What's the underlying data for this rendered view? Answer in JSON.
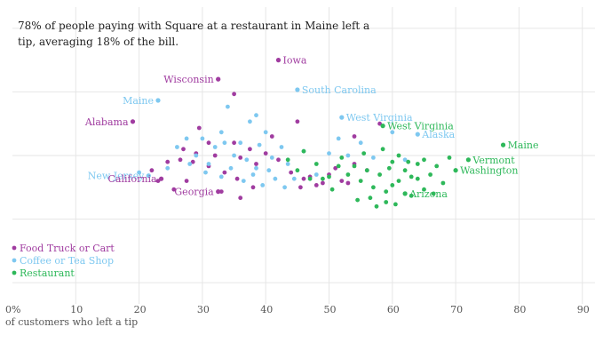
{
  "chart_data": {
    "type": "scatter",
    "annotation_lines": [
      "78% of people paying with Square at a restaurant in Maine left a",
      "tip, averaging 18% of the bill."
    ],
    "xlabel": "of customers who left a tip",
    "xlim": [
      0,
      92
    ],
    "x_ticks": [
      {
        "value": 0,
        "label": "0%"
      },
      {
        "value": 10,
        "label": "10"
      },
      {
        "value": 20,
        "label": "20"
      },
      {
        "value": 30,
        "label": "30"
      },
      {
        "value": 40,
        "label": "40"
      },
      {
        "value": 50,
        "label": "50"
      },
      {
        "value": 60,
        "label": "60"
      },
      {
        "value": 70,
        "label": "70"
      },
      {
        "value": 80,
        "label": "80"
      },
      {
        "value": 90,
        "label": "90"
      }
    ],
    "ylim": [
      11,
      25
    ],
    "y_gridlines": [
      24,
      21,
      18,
      15,
      12
    ],
    "grid": true,
    "legend_position": "bottom-left",
    "colors": {
      "food_truck": "#a03ca0",
      "coffee": "#7ec8f0",
      "restaurant": "#2eb85a",
      "grid": "#e6e6e6",
      "text": "#222222"
    },
    "series": [
      {
        "name": "Food Truck or Cart",
        "color_key": "food_truck",
        "points": [
          [
            42,
            22.5
          ],
          [
            32.5,
            21.6
          ],
          [
            19,
            19.6
          ],
          [
            35,
            20.9
          ],
          [
            45,
            19.6
          ],
          [
            54,
            18.9
          ],
          [
            58,
            19.5
          ],
          [
            29.5,
            19.3
          ],
          [
            22,
            17.3
          ],
          [
            24.5,
            17.7
          ],
          [
            26.5,
            17.8
          ],
          [
            27,
            18.3
          ],
          [
            28.5,
            17.7
          ],
          [
            29,
            18.1
          ],
          [
            31,
            17.5
          ],
          [
            32,
            18.0
          ],
          [
            33.5,
            17.2
          ],
          [
            35,
            18.6
          ],
          [
            36,
            17.9
          ],
          [
            37.5,
            18.3
          ],
          [
            38.5,
            17.6
          ],
          [
            40,
            18.1
          ],
          [
            41,
            18.9
          ],
          [
            42,
            17.8
          ],
          [
            44,
            17.2
          ],
          [
            46,
            16.9
          ],
          [
            48,
            16.6
          ],
          [
            50,
            17.1
          ],
          [
            52,
            16.8
          ],
          [
            54,
            17.6
          ],
          [
            56,
            17.3
          ],
          [
            33,
            16.3
          ],
          [
            36,
            16.0
          ],
          [
            38,
            16.5
          ],
          [
            23,
            16.8
          ],
          [
            25.5,
            16.4
          ],
          [
            47,
            17.0
          ],
          [
            51,
            17.4
          ],
          [
            53,
            16.7
          ],
          [
            31,
            18.6
          ],
          [
            35.5,
            16.9
          ],
          [
            27.5,
            16.8
          ],
          [
            45.5,
            16.5
          ],
          [
            49,
            16.7
          ]
        ]
      },
      {
        "name": "Coffee or Tea Shop",
        "color_key": "coffee",
        "points": [
          [
            23,
            20.6
          ],
          [
            45,
            21.1
          ],
          [
            34,
            20.3
          ],
          [
            38.5,
            19.9
          ],
          [
            40,
            19.1
          ],
          [
            20,
            17.2
          ],
          [
            24.5,
            17.4
          ],
          [
            26,
            18.4
          ],
          [
            29,
            18.0
          ],
          [
            30,
            18.8
          ],
          [
            31,
            17.6
          ],
          [
            32,
            18.4
          ],
          [
            33,
            19.1
          ],
          [
            34.5,
            17.4
          ],
          [
            35,
            18.0
          ],
          [
            36,
            18.6
          ],
          [
            37,
            17.8
          ],
          [
            38,
            17.1
          ],
          [
            39,
            18.5
          ],
          [
            40.5,
            17.3
          ],
          [
            41,
            17.9
          ],
          [
            42.5,
            18.4
          ],
          [
            43.5,
            17.6
          ],
          [
            44.5,
            16.9
          ],
          [
            46,
            18.2
          ],
          [
            48,
            17.1
          ],
          [
            50,
            18.1
          ],
          [
            51.5,
            18.8
          ],
          [
            53,
            18.0
          ],
          [
            55,
            18.6
          ],
          [
            57,
            17.9
          ],
          [
            60,
            19.1
          ],
          [
            62,
            17.8
          ],
          [
            30.5,
            17.2
          ],
          [
            33,
            17.0
          ],
          [
            36.5,
            16.8
          ],
          [
            39.5,
            16.6
          ],
          [
            43,
            16.5
          ],
          [
            28,
            17.6
          ],
          [
            41.5,
            16.9
          ],
          [
            37.5,
            19.6
          ],
          [
            33.5,
            18.6
          ],
          [
            27.5,
            18.8
          ],
          [
            38.5,
            17.4
          ]
        ]
      },
      {
        "name": "Restaurant",
        "color_key": "restaurant",
        "points": [
          [
            77.5,
            18.5
          ],
          [
            72,
            17.8
          ],
          [
            70,
            17.3
          ],
          [
            62,
            16.2
          ],
          [
            46,
            18.2
          ],
          [
            48,
            17.6
          ],
          [
            50,
            17.0
          ],
          [
            52,
            17.9
          ],
          [
            54,
            17.5
          ],
          [
            55,
            16.8
          ],
          [
            56,
            17.3
          ],
          [
            57,
            16.5
          ],
          [
            58,
            17.1
          ],
          [
            59,
            16.3
          ],
          [
            60,
            17.7
          ],
          [
            61,
            16.8
          ],
          [
            62,
            17.3
          ],
          [
            63,
            16.1
          ],
          [
            64,
            17.6
          ],
          [
            65,
            16.4
          ],
          [
            66,
            17.1
          ],
          [
            67,
            17.5
          ],
          [
            68,
            16.7
          ],
          [
            69,
            17.9
          ],
          [
            57.5,
            15.6
          ],
          [
            60.5,
            15.7
          ],
          [
            54.5,
            15.9
          ],
          [
            53,
            17.1
          ],
          [
            58.5,
            18.3
          ],
          [
            61,
            18.0
          ],
          [
            63,
            17.0
          ],
          [
            65,
            17.8
          ],
          [
            50.5,
            16.4
          ],
          [
            55.5,
            18.1
          ],
          [
            59.5,
            17.4
          ],
          [
            64,
            16.9
          ],
          [
            56.5,
            16.0
          ],
          [
            51.5,
            17.5
          ],
          [
            49,
            16.9
          ],
          [
            59,
            15.8
          ],
          [
            47,
            16.9
          ],
          [
            60,
            16.6
          ],
          [
            62.5,
            17.7
          ],
          [
            45,
            17.3
          ],
          [
            43.5,
            17.8
          ],
          [
            66.5,
            16.2
          ]
        ]
      }
    ],
    "labels": [
      {
        "text": "Iowa",
        "series": "food_truck",
        "x": 42,
        "y": 22.5,
        "side": "right"
      },
      {
        "text": "Wisconsin",
        "series": "food_truck",
        "x": 32.5,
        "y": 21.6,
        "side": "left"
      },
      {
        "text": "Maine",
        "series": "coffee",
        "x": 23,
        "y": 20.6,
        "side": "left"
      },
      {
        "text": "South Carolina",
        "series": "coffee",
        "x": 45,
        "y": 21.1,
        "side": "right"
      },
      {
        "text": "Alabama",
        "series": "food_truck",
        "x": 19,
        "y": 19.6,
        "side": "left"
      },
      {
        "text": "West Virginia",
        "series": "coffee",
        "x": 52,
        "y": 19.8,
        "side": "right"
      },
      {
        "text": "West Virginia",
        "series": "restaurant",
        "x": 58.5,
        "y": 19.4,
        "side": "right"
      },
      {
        "text": "Alaska",
        "series": "coffee",
        "x": 64,
        "y": 19.0,
        "side": "right"
      },
      {
        "text": "Maine",
        "series": "restaurant",
        "x": 77.5,
        "y": 18.5,
        "side": "right"
      },
      {
        "text": "Vermont",
        "series": "restaurant",
        "x": 72,
        "y": 17.8,
        "side": "right"
      },
      {
        "text": "Washington",
        "series": "restaurant",
        "x": 70,
        "y": 17.3,
        "side": "right"
      },
      {
        "text": "New Jersey",
        "series": "coffee",
        "x": 21.5,
        "y": 17.05,
        "side": "left"
      },
      {
        "text": "California",
        "series": "food_truck",
        "x": 23.5,
        "y": 16.9,
        "side": "left"
      },
      {
        "text": "Georgia",
        "series": "food_truck",
        "x": 32.5,
        "y": 16.3,
        "side": "left"
      },
      {
        "text": "Arizona",
        "series": "restaurant",
        "x": 62,
        "y": 16.2,
        "side": "right"
      }
    ],
    "legend": [
      {
        "label": "Food Truck or Cart",
        "color_key": "food_truck"
      },
      {
        "label": "Coffee or Tea Shop",
        "color_key": "coffee"
      },
      {
        "label": "Restaurant",
        "color_key": "restaurant"
      }
    ]
  }
}
